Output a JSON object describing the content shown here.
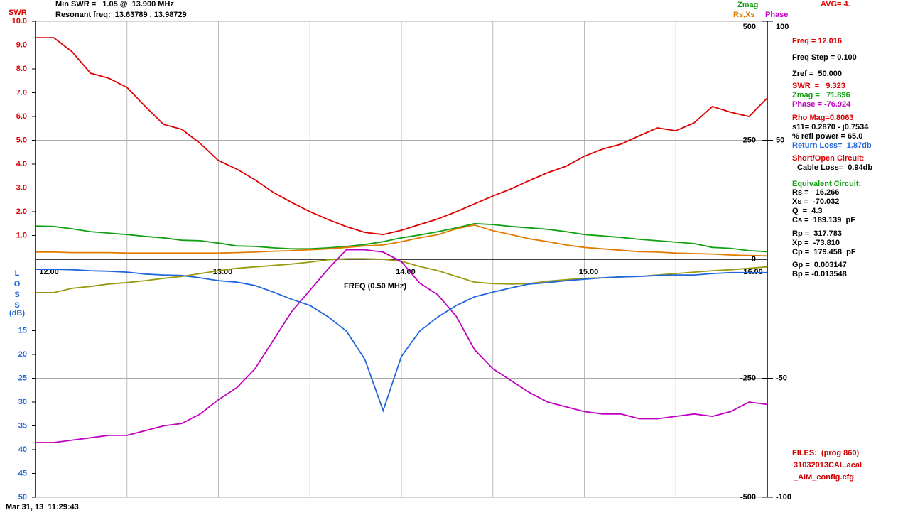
{
  "chart_data": {
    "type": "line",
    "header": {
      "swr_label": "SWR",
      "min_swr": "Min SWR =   1.05 @  13.900 MHz",
      "resonant": "Resonant freq:  13.63789 , 13.98729",
      "avg": "AVG= 4."
    },
    "xlabel": "FREQ (0.50 MHz)",
    "xlim": [
      12,
      16
    ],
    "xticks": [
      {
        "value": 12,
        "label": "12.00"
      },
      {
        "value": 13,
        "label": "13.00"
      },
      {
        "value": 14,
        "label": "14.00"
      },
      {
        "value": 15,
        "label": "15.00"
      },
      {
        "value": 16,
        "label": "16.00"
      }
    ],
    "x_grid": [
      12.5,
      13.5,
      14.5,
      15.5
    ],
    "axes": {
      "swr": {
        "lim": [
          0,
          10
        ],
        "ticks": [
          {
            "value": 1,
            "label": "1.0"
          },
          {
            "value": 2,
            "label": "2.0"
          },
          {
            "value": 3,
            "label": "3.0"
          },
          {
            "value": 4,
            "label": "4.0"
          },
          {
            "value": 5,
            "label": "5.0"
          },
          {
            "value": 6,
            "label": "6.0"
          },
          {
            "value": 7,
            "label": "7.0"
          },
          {
            "value": 8,
            "label": "8.0"
          },
          {
            "value": 9,
            "label": "9.0"
          },
          {
            "value": 10,
            "label": "10.0"
          }
        ],
        "color": "#e00000"
      },
      "loss": {
        "lim": [
          0,
          50
        ],
        "ticks": [
          15,
          20,
          25,
          30,
          35,
          40,
          45,
          50
        ],
        "label": [
          "L",
          "O",
          "S",
          "S",
          "(dB)"
        ],
        "color": "#2266dd"
      },
      "zmag": {
        "lim": [
          -500,
          500
        ],
        "ticks": [
          500,
          250,
          0,
          -250,
          -500
        ]
      },
      "phase": {
        "lim": [
          -100,
          100
        ],
        "ticks": [
          100,
          50,
          -50,
          -100
        ]
      }
    },
    "legend": [
      {
        "text": "Zmag",
        "color": "#11a011"
      },
      {
        "text": "Rs,Xs",
        "color": "#e07b00"
      },
      {
        "text": "Phase",
        "color": "#c000c0"
      }
    ],
    "x": [
      12.0,
      12.1,
      12.2,
      12.3,
      12.4,
      12.5,
      12.6,
      12.7,
      12.8,
      12.9,
      13.0,
      13.1,
      13.2,
      13.3,
      13.4,
      13.5,
      13.6,
      13.7,
      13.8,
      13.9,
      14.0,
      14.1,
      14.2,
      14.3,
      14.4,
      14.5,
      14.6,
      14.7,
      14.8,
      14.9,
      15.0,
      15.1,
      15.2,
      15.3,
      15.4,
      15.5,
      15.6,
      15.7,
      15.8,
      15.9,
      16.0
    ],
    "series": [
      {
        "axis": "swr",
        "color": "#e00000",
        "values": [
          9.31,
          9.31,
          8.72,
          7.82,
          7.61,
          7.22,
          6.42,
          5.67,
          5.46,
          4.87,
          4.15,
          3.79,
          3.34,
          2.81,
          2.39,
          2.0,
          1.67,
          1.37,
          1.13,
          1.04,
          1.22,
          1.46,
          1.7,
          2.0,
          2.33,
          2.66,
          2.96,
          3.31,
          3.64,
          3.91,
          4.33,
          4.63,
          4.84,
          5.19,
          5.52,
          5.4,
          5.73,
          6.42,
          6.18,
          6.0,
          6.78
        ]
      },
      {
        "axis": "zmag",
        "color": "#11a011",
        "values": [
          70,
          69,
          64,
          58,
          55,
          52,
          48,
          45,
          40,
          39,
          34,
          28,
          27,
          24,
          22,
          22,
          24,
          27,
          31,
          37,
          45,
          51,
          58,
          66,
          75,
          73,
          69,
          66,
          63,
          58,
          52,
          49,
          46,
          42,
          39,
          36,
          33,
          25,
          23,
          18,
          16
        ]
      },
      {
        "axis": "zmag",
        "color": "#e07b00",
        "values": [
          15,
          15,
          14,
          14,
          14,
          13,
          13,
          13,
          13,
          13,
          13,
          14,
          15,
          17,
          18,
          20,
          22,
          25,
          28,
          30,
          37,
          45,
          52,
          64,
          72,
          60,
          52,
          43,
          37,
          30,
          25,
          22,
          19,
          16,
          15,
          13,
          12,
          11,
          9,
          8,
          7
        ]
      },
      {
        "axis": "zmag",
        "color": "#9a9a10",
        "values": [
          -70,
          -70,
          -61,
          -57,
          -52,
          -49,
          -45,
          -40,
          -36,
          -30,
          -24,
          -19,
          -16,
          -13,
          -10,
          -6,
          -1,
          1,
          1,
          0,
          -4,
          -15,
          -24,
          -36,
          -48,
          -51,
          -52,
          -51,
          -46,
          -43,
          -40,
          -39,
          -37,
          -36,
          -33,
          -30,
          -27,
          -24,
          -22,
          -19,
          -16
        ]
      },
      {
        "axis": "phase",
        "color": "#c000c0",
        "values": [
          -77,
          -77,
          -76,
          -75,
          -74,
          -74,
          -72,
          -70,
          -69,
          -65,
          -59,
          -54,
          -46,
          -34,
          -22,
          -13,
          -4,
          4,
          4,
          3,
          -1,
          -10,
          -15,
          -24,
          -38,
          -46,
          -51,
          -56,
          -60,
          -62,
          -64,
          -65,
          -65,
          -67,
          -67,
          -66,
          -65,
          -66,
          -64,
          -60,
          -61
        ]
      },
      {
        "axis": "loss",
        "color": "#2266dd",
        "values": [
          2.1,
          2.1,
          2.2,
          2.4,
          2.5,
          2.7,
          3.1,
          3.3,
          3.4,
          3.9,
          4.5,
          4.8,
          5.5,
          6.9,
          8.4,
          9.7,
          12.1,
          15.1,
          21.0,
          31.8,
          20.4,
          15.1,
          12.1,
          9.7,
          7.9,
          6.9,
          6.0,
          5.2,
          4.9,
          4.5,
          4.2,
          3.9,
          3.7,
          3.6,
          3.4,
          3.3,
          3.3,
          3.0,
          2.8,
          2.8,
          2.8
        ]
      }
    ]
  },
  "readout": [
    {
      "text": "Freq = 12.016",
      "color": "#e00000"
    },
    {
      "text": "Freq Step = 0.100",
      "color": "#000000"
    },
    {
      "text": "Zref =  50.000",
      "color": "#000000"
    },
    {
      "text": "SWR  =   9.323",
      "color": "#e00000"
    },
    {
      "text": "Zmag =   71.896",
      "color": "#11a011"
    },
    {
      "text": "Phase = -76.924",
      "color": "#c000c0"
    },
    {
      "text": "Rho Mag=0.8063",
      "color": "#e00000"
    },
    {
      "text": "s11= 0.2870 - j0.7534",
      "color": "#000000"
    },
    {
      "text": "% refl power = 65.0",
      "color": "#000000"
    },
    {
      "text": "Return Loss=  1.87db",
      "color": "#2266dd"
    },
    {
      "text": "Short/Open Circuit:",
      "color": "#e00000"
    },
    {
      "text": "Cable Loss=  0.94db",
      "color": "#000000"
    },
    {
      "text": "Equivalent Circuit:",
      "color": "#11a011"
    },
    {
      "text": "Rs =   16.266",
      "color": "#000000"
    },
    {
      "text": "Xs =  -70.032",
      "color": "#000000"
    },
    {
      "text": "Q  =  4.3",
      "color": "#000000"
    },
    {
      "text": "Cs =  189.139  pF",
      "color": "#000000"
    },
    {
      "text": "Rp =  317.783",
      "color": "#000000"
    },
    {
      "text": "Xp =  -73.810",
      "color": "#000000"
    },
    {
      "text": "Cp =  179.458  pF",
      "color": "#000000"
    },
    {
      "text": "Gp =  0.003147",
      "color": "#000000"
    },
    {
      "text": "Bp = -0.013548",
      "color": "#000000"
    }
  ],
  "files": [
    {
      "text": "FILES:  (prog 860)"
    },
    {
      "text": "31032013CAL.acal"
    },
    {
      "text": "_AIM_config.cfg"
    }
  ],
  "timestamp": "Mar 31, 13  11:29:43"
}
